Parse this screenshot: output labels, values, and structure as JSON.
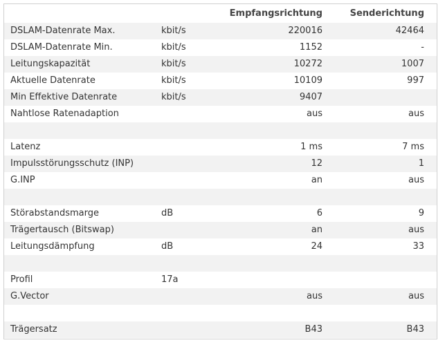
{
  "table": {
    "header": [
      null,
      null,
      "Empfangsrichtung",
      "Senderichtung"
    ],
    "rows": [
      [
        "DSLAM-Datenrate Max.",
        "kbit/s",
        "220016",
        "42464"
      ],
      [
        "DSLAM-Datenrate Min.",
        "kbit/s",
        "1152",
        "-"
      ],
      [
        "Leitungskapazität",
        "kbit/s",
        "10272",
        "1007"
      ],
      [
        "Aktuelle Datenrate",
        "kbit/s",
        "10109",
        "997"
      ],
      [
        "Min Effektive Datenrate",
        "kbit/s",
        "9407",
        null
      ],
      [
        "Nahtlose Ratenadaption",
        null,
        "aus",
        "aus"
      ],
      [
        null,
        null,
        null,
        null
      ],
      [
        "Latenz",
        null,
        "1 ms",
        "7 ms"
      ],
      [
        "Impulsstörungsschutz (INP)",
        null,
        "12",
        "1"
      ],
      [
        "G.INP",
        null,
        "an",
        "aus"
      ],
      [
        null,
        null,
        null,
        null
      ],
      [
        "Störabstandsmarge",
        "dB",
        "6",
        "9"
      ],
      [
        "Trägertausch (Bitswap)",
        null,
        "an",
        "aus"
      ],
      [
        "Leitungsdämpfung",
        "dB",
        "24",
        "33"
      ],
      [
        null,
        null,
        null,
        null
      ],
      [
        "Profil",
        "17a",
        null,
        null
      ],
      [
        "G.Vector",
        null,
        "aus",
        "aus"
      ],
      [
        null,
        null,
        null,
        null
      ],
      [
        "Trägersatz",
        null,
        "B43",
        "B43"
      ]
    ]
  }
}
